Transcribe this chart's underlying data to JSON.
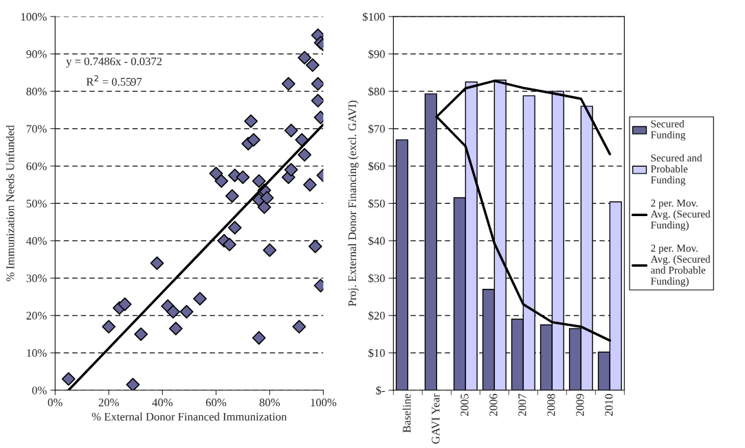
{
  "chart_data": [
    {
      "type": "scatter",
      "xlabel": "% External Donor Financed Immunization",
      "ylabel": "% Immunization Needs Unfunded",
      "annotations": [
        "y = 0.7486x - 0.0372",
        "R$^{2}$ = 0.5597"
      ],
      "series": [
        {
          "type": "scatter",
          "color": "#666699",
          "marker": "diamond",
          "x": [
            5,
            20,
            24,
            26,
            29,
            32,
            38,
            42,
            44,
            45,
            49,
            54,
            60,
            62,
            63,
            65,
            66,
            67,
            67,
            70,
            72,
            73,
            74,
            76,
            76,
            76,
            78,
            78,
            79,
            80,
            87,
            87,
            88,
            88,
            91,
            92,
            93,
            93,
            95,
            96,
            97,
            98,
            98,
            99,
            98,
            99,
            99,
            100,
            100
          ],
          "values": [
            3,
            17,
            22,
            23,
            1.5,
            15,
            34,
            22.5,
            21,
            16.5,
            21,
            24.5,
            58,
            56,
            40,
            39,
            52,
            57.5,
            43.5,
            57,
            66,
            72,
            67,
            56,
            51,
            14,
            49,
            53.5,
            51.5,
            37.5,
            57,
            82,
            69.5,
            59,
            17,
            67,
            63,
            89,
            55,
            87,
            38.5,
            95,
            77.5,
            93,
            82,
            73,
            28,
            92.5,
            57.5
          ]
        },
        {
          "type": "line",
          "color": "#000000",
          "marker": "none",
          "line_style": "solid",
          "x": [
            5,
            100
          ],
          "values": [
            0,
            71.1
          ]
        }
      ],
      "xlim": [
        0,
        100
      ],
      "ylim": [
        0,
        100
      ],
      "xticks": [
        {
          "value": 0,
          "label": "0%"
        },
        {
          "value": 20,
          "label": "20%"
        },
        {
          "value": 40,
          "label": "40%"
        },
        {
          "value": 60,
          "label": "60%"
        },
        {
          "value": 80,
          "label": "80%"
        },
        {
          "value": 100,
          "label": "100%"
        }
      ],
      "yticks": [
        {
          "value": 0,
          "label": "0%"
        },
        {
          "value": 10,
          "label": "10%"
        },
        {
          "value": 20,
          "label": "20%"
        },
        {
          "value": 30,
          "label": "30%"
        },
        {
          "value": 40,
          "label": "40%"
        },
        {
          "value": 50,
          "label": "50%"
        },
        {
          "value": 60,
          "label": "60%"
        },
        {
          "value": 70,
          "label": "70%"
        },
        {
          "value": 80,
          "label": "80%"
        },
        {
          "value": 90,
          "label": "90%"
        },
        {
          "value": 100,
          "label": "100%"
        }
      ],
      "grid": "y",
      "legend": false
    },
    {
      "type": "bar",
      "ylabel": "Proj. External Donor Financing (excl. GAVI)",
      "categories": [
        "Baseline",
        "GAVI Year",
        "2005",
        "2006",
        "2007",
        "2008",
        "2009",
        "2010"
      ],
      "series": [
        {
          "type": "bar",
          "name": "Secured\nFunding",
          "color": "#666699",
          "values": [
            67,
            79.3,
            51.5,
            27,
            19,
            17.5,
            16.5,
            10.2
          ]
        },
        {
          "type": "bar",
          "name": "Secured and\nProbable\nFunding",
          "color": "#ccccff",
          "values": [
            null,
            null,
            82.5,
            83,
            78.8,
            80,
            76,
            50.4
          ]
        },
        {
          "type": "line",
          "name": "2 per. Mov.\nAvg. (Secured\nFunding)",
          "color": "#000000",
          "marker": "none",
          "line_style": "solid",
          "values": [
            null,
            73.2,
            65.3,
            39.3,
            23,
            18.2,
            17,
            13.3
          ]
        },
        {
          "type": "line",
          "name": "2 per. Mov.\nAvg. (Secured\nand Probable\nFunding)",
          "color": "#000000",
          "marker": "none",
          "line_style": "solid",
          "values": [
            null,
            73.2,
            80.8,
            82.8,
            80.9,
            79.5,
            78,
            63.2
          ]
        }
      ],
      "ylim": [
        0,
        100
      ],
      "yticks": [
        {
          "value": 0,
          "label": "$-"
        },
        {
          "value": 10,
          "label": "$10"
        },
        {
          "value": 20,
          "label": "$20"
        },
        {
          "value": 30,
          "label": "$30"
        },
        {
          "value": 40,
          "label": "$40"
        },
        {
          "value": 50,
          "label": "$50"
        },
        {
          "value": 60,
          "label": "$60"
        },
        {
          "value": 70,
          "label": "$70"
        },
        {
          "value": 80,
          "label": "$80"
        },
        {
          "value": 90,
          "label": "$90"
        },
        {
          "value": 100,
          "label": "$100"
        }
      ],
      "grid": "y",
      "legend": "right"
    }
  ]
}
